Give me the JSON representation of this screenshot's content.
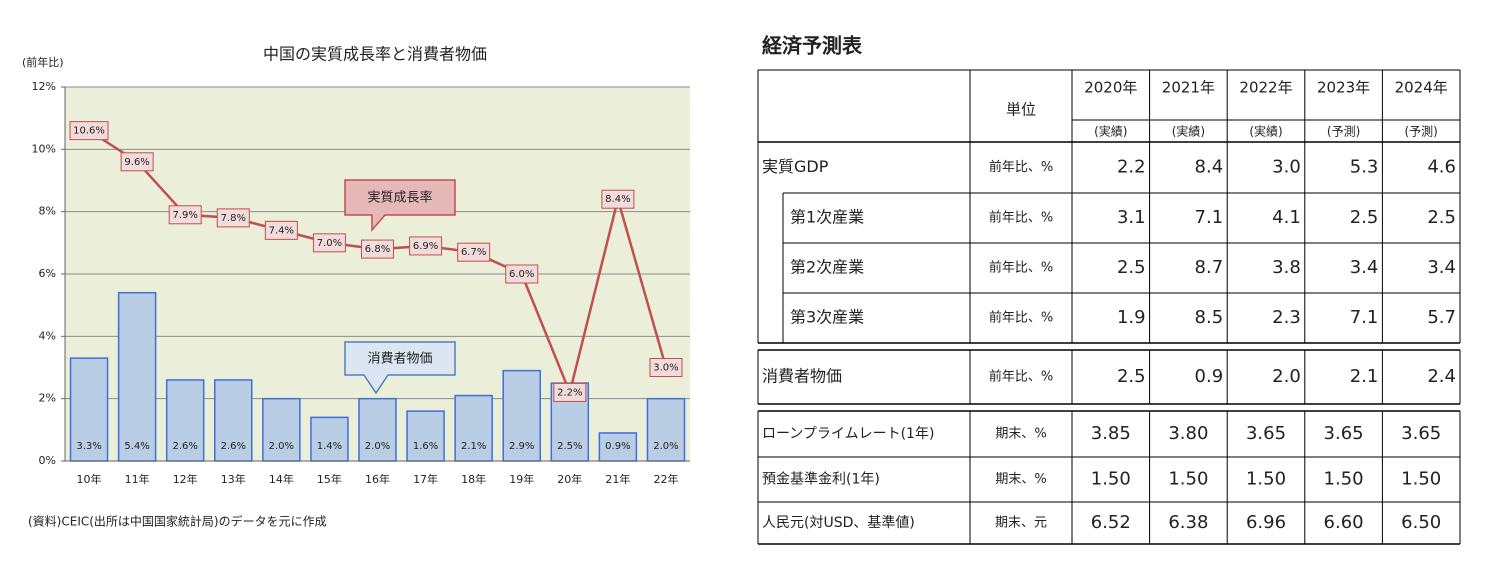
{
  "chart_data": {
    "type": "combo",
    "title": "中国の実質成長率と消費者物価",
    "y_label": "(前年比)",
    "source": "(資料)CEIC(出所は中国国家統計局)のデータを元に作成",
    "categories": [
      "10年",
      "11年",
      "12年",
      "13年",
      "14年",
      "15年",
      "16年",
      "17年",
      "18年",
      "19年",
      "20年",
      "21年",
      "22年"
    ],
    "series": [
      {
        "name": "消費者物価",
        "type": "bar",
        "color": "#b9cde5",
        "values": [
          3.3,
          5.4,
          2.6,
          2.6,
          2.0,
          1.4,
          2.0,
          1.6,
          2.1,
          2.9,
          2.5,
          0.9,
          2.0
        ],
        "value_labels": [
          "3.3%",
          "5.4%",
          "2.6%",
          "2.6%",
          "2.0%",
          "1.4%",
          "2.0%",
          "1.6%",
          "2.1%",
          "2.9%",
          "2.5%",
          "0.9%",
          "2.0%"
        ]
      },
      {
        "name": "実質成長率",
        "type": "line",
        "color": "#c0504d",
        "values": [
          10.6,
          9.6,
          7.9,
          7.8,
          7.4,
          7.0,
          6.8,
          6.9,
          6.7,
          6.0,
          2.2,
          8.4,
          3.0
        ],
        "value_labels": [
          "10.6%",
          "9.6%",
          "7.9%",
          "7.8%",
          "7.4%",
          "7.0%",
          "6.8%",
          "6.9%",
          "6.7%",
          "6.0%",
          "2.2%",
          "8.4%",
          "3.0%"
        ]
      }
    ],
    "ylim": [
      0,
      12
    ],
    "yticks": [
      {
        "value": 0,
        "label": "0%"
      },
      {
        "value": 2,
        "label": "2%"
      },
      {
        "value": 4,
        "label": "4%"
      },
      {
        "value": 6,
        "label": "6%"
      },
      {
        "value": 8,
        "label": "8%"
      },
      {
        "value": 10,
        "label": "10%"
      },
      {
        "value": 12,
        "label": "12%"
      }
    ],
    "grid": true
  },
  "table": {
    "title": "経済予測表",
    "unit_header": "単位",
    "columns": [
      {
        "year": "2020年",
        "status": "(実績)"
      },
      {
        "year": "2021年",
        "status": "(実績)"
      },
      {
        "year": "2022年",
        "status": "(実績)"
      },
      {
        "year": "2023年",
        "status": "(予測)"
      },
      {
        "year": "2024年",
        "status": "(予測)"
      }
    ],
    "groups": [
      [
        {
          "label": "実質GDP",
          "unit": "前年比、%",
          "values": [
            "2.2",
            "8.4",
            "3.0",
            "5.3",
            "4.6"
          ]
        },
        {
          "label": "第1次産業",
          "unit": "前年比、%",
          "values": [
            "3.1",
            "7.1",
            "4.1",
            "2.5",
            "2.5"
          ]
        },
        {
          "label": "第2次産業",
          "unit": "前年比、%",
          "values": [
            "2.5",
            "8.7",
            "3.8",
            "3.4",
            "3.4"
          ]
        },
        {
          "label": "第3次産業",
          "unit": "前年比、%",
          "values": [
            "1.9",
            "8.5",
            "2.3",
            "7.1",
            "5.7"
          ]
        }
      ],
      [
        {
          "label": "消費者物価",
          "unit": "前年比、%",
          "values": [
            "2.5",
            "0.9",
            "2.0",
            "2.1",
            "2.4"
          ]
        }
      ],
      [
        {
          "label": "ローンプライムレート(1年)",
          "unit": "期末、%",
          "values": [
            "3.85",
            "3.80",
            "3.65",
            "3.65",
            "3.65"
          ]
        },
        {
          "label": "預金基準金利(1年)",
          "unit": "期末、%",
          "values": [
            "1.50",
            "1.50",
            "1.50",
            "1.50",
            "1.50"
          ]
        },
        {
          "label": "人民元(対USD、基準値)",
          "unit": "期末、元",
          "values": [
            "6.52",
            "6.38",
            "6.96",
            "6.60",
            "6.50"
          ]
        }
      ]
    ]
  }
}
